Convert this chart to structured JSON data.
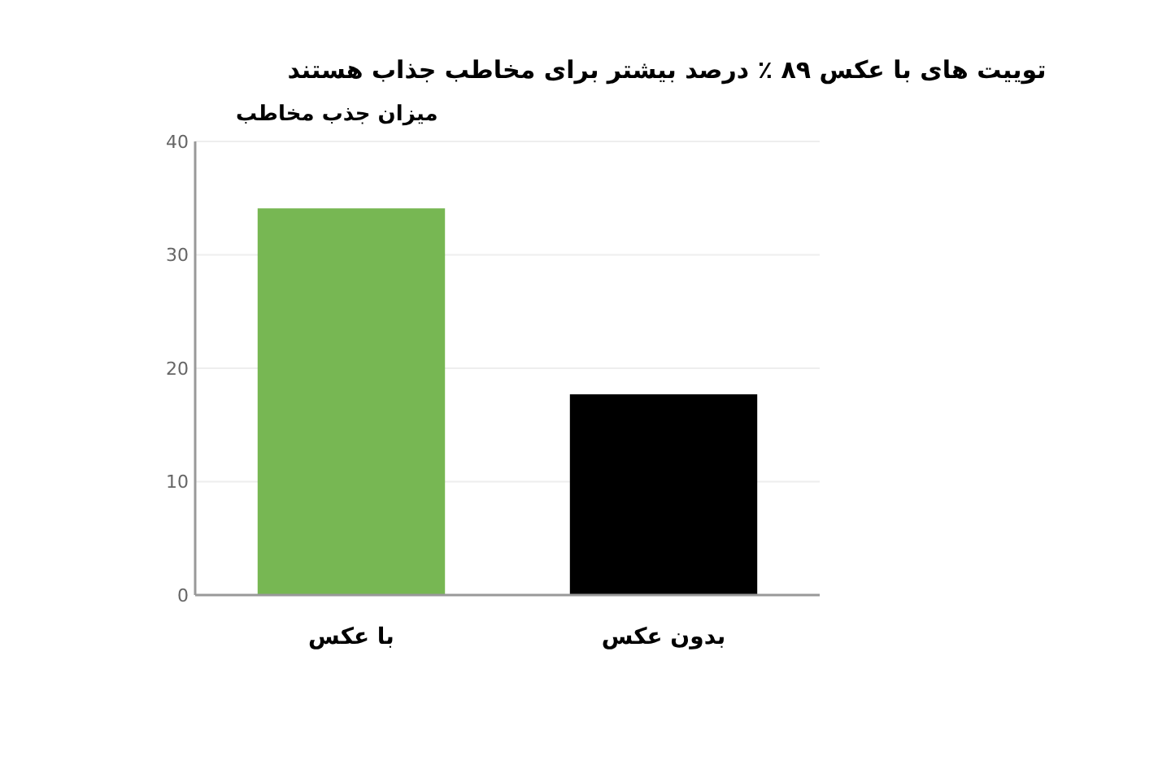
{
  "chart_data": {
    "type": "bar",
    "title": "توییت های با عکس ۸۹ ٪ درصد بیشتر برای مخاطب جذاب هستند",
    "ylabel": "میزان جذب مخاطب",
    "categories": [
      "با عکس",
      "بدون عکس"
    ],
    "values": [
      34.1,
      17.7
    ],
    "colors": [
      "#77b753",
      "#000000"
    ],
    "ylim": [
      0,
      40
    ],
    "yticks": [
      0,
      10,
      20,
      30,
      40
    ],
    "grid": "y"
  }
}
